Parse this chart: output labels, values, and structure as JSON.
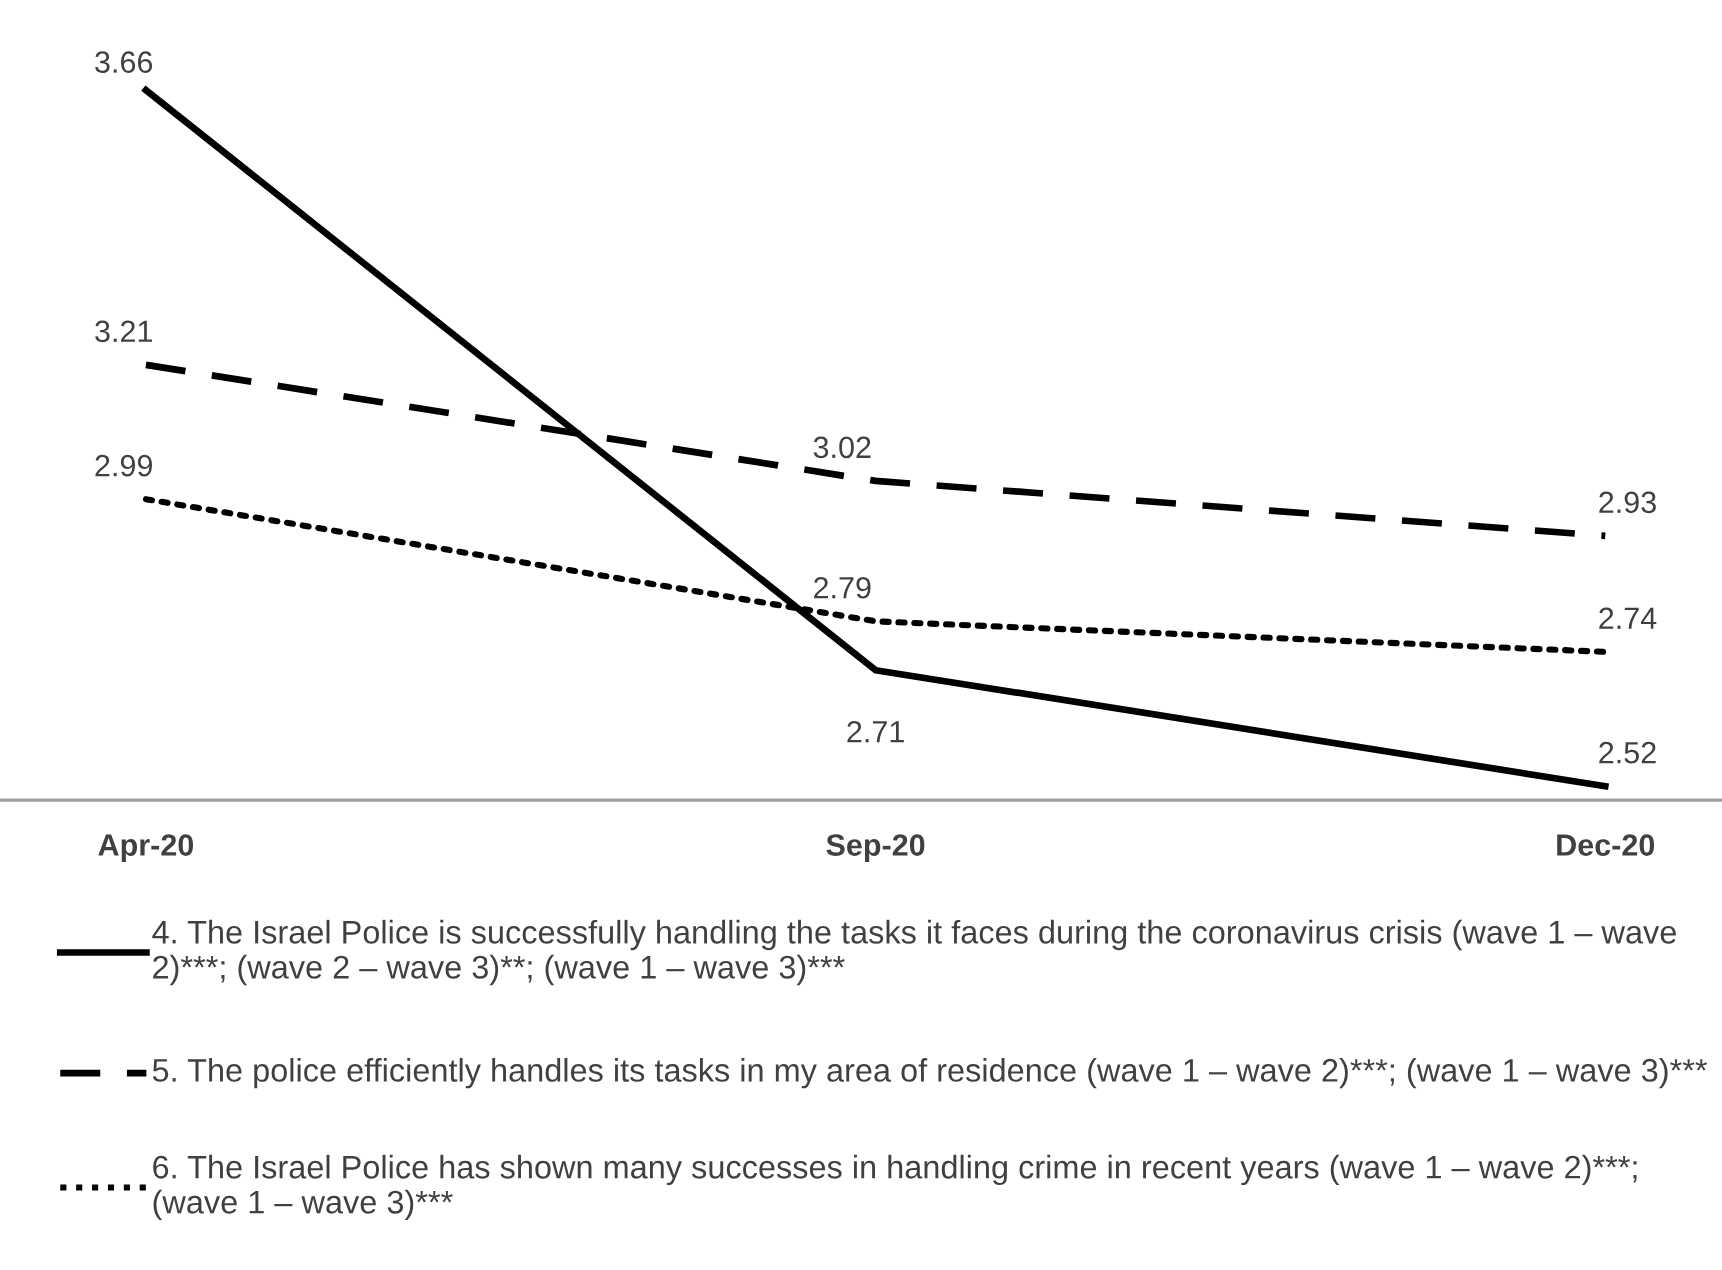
{
  "chart_data": {
    "type": "line",
    "categories": [
      "Apr-20",
      "Sep-20",
      "Dec-20"
    ],
    "data_labels": true,
    "legend": "bottom",
    "grid": false,
    "series": [
      {
        "name": "4. The Israel Police is successfully handling the tasks it faces during the coronavirus crisis (wave 1 – wave 2)***; (wave 2 – wave 3)**; (wave 1 – wave 3)***",
        "color": "#000000",
        "line_style": "solid",
        "values": [
          3.66,
          2.71,
          2.52
        ]
      },
      {
        "name": "5. The police efficiently handles its tasks in my area of residence (wave 1 – wave 2)***; (wave 1 – wave 3)***",
        "color": "#000000",
        "line_style": "dashed",
        "values": [
          3.21,
          3.02,
          2.93
        ]
      },
      {
        "name": "6. The Israel Police has shown many successes in handling crime in recent years (wave 1 – wave 2)***; (wave 1 – wave 3)***",
        "color": "#000000",
        "line_style": "dotted",
        "values": [
          2.99,
          2.79,
          2.74
        ]
      }
    ]
  }
}
